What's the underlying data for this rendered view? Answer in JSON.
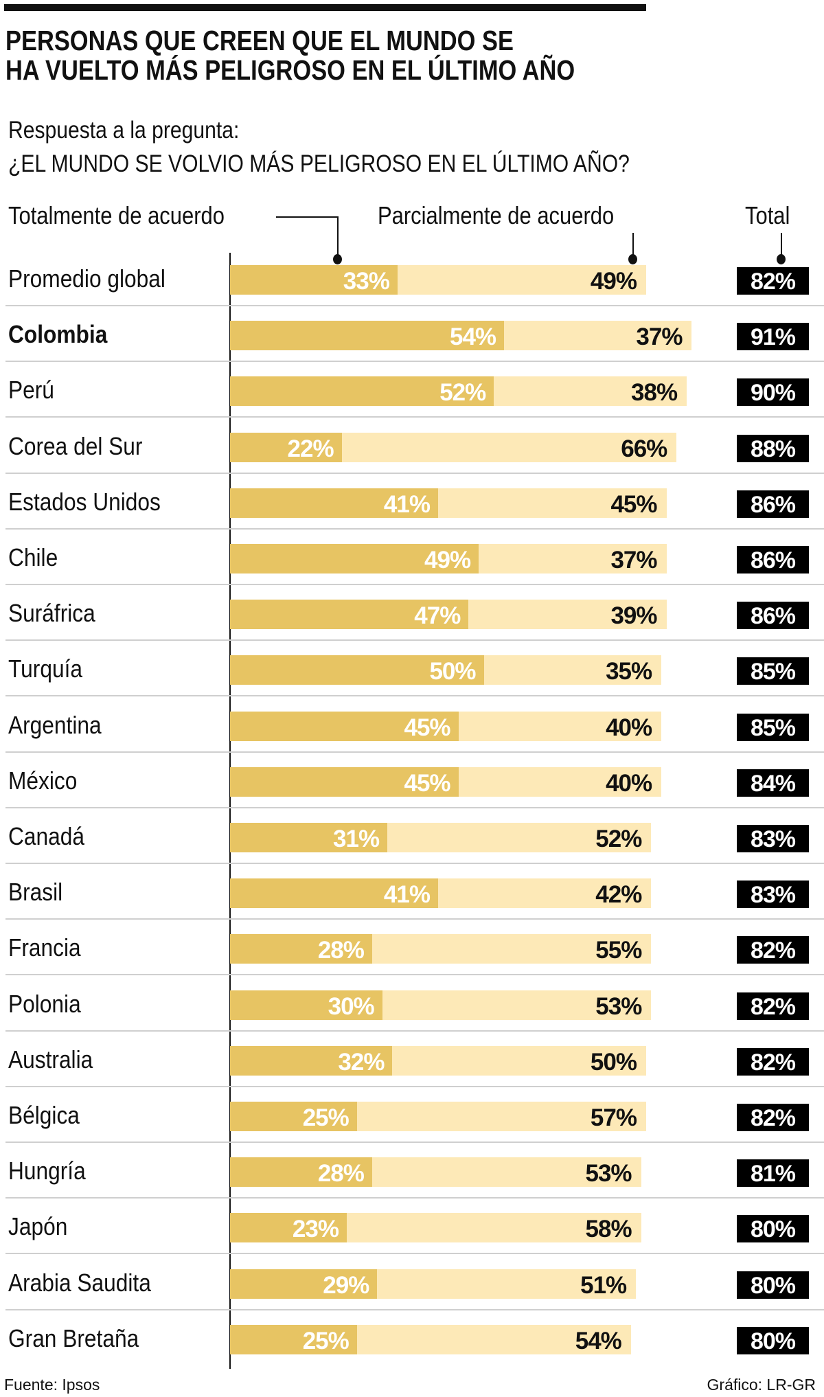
{
  "title_lines": [
    "PERSONAS QUE CREEN QUE EL MUNDO SE",
    "HA VUELTO MÁS PELIGROSO EN EL ÚLTIMO AÑO"
  ],
  "subtitle": "Respuesta a la pregunta:",
  "question": "¿EL MUNDO SE VOLVIO MÁS PELIGROSO EN EL ÚLTIMO AÑO?",
  "footer": {
    "source": "Fuente: Ipsos",
    "credit": "Gráfico: LR-GR"
  },
  "chart_data": {
    "type": "bar",
    "orientation": "horizontal",
    "stacked": true,
    "unit": "%",
    "highlight": "Colombia",
    "colors": {
      "Totalmente de acuerdo": "#e7c463",
      "Parcialmente de acuerdo": "#fde9b7",
      "Total": "#000000"
    },
    "legend": [
      "Totalmente de acuerdo",
      "Parcialmente de acuerdo",
      "Total"
    ],
    "categories": [
      "Promedio global",
      "Colombia",
      "Perú",
      "Corea del Sur",
      "Estados Unidos",
      "Chile",
      "Suráfrica",
      "Turquía",
      "Argentina",
      "México",
      "Canadá",
      "Brasil",
      "Francia",
      "Polonia",
      "Australia",
      "Bélgica",
      "Hungría",
      "Japón",
      "Arabia Saudita",
      "Gran Bretaña"
    ],
    "series": [
      {
        "name": "Totalmente de acuerdo",
        "values": [
          33,
          54,
          52,
          22,
          41,
          49,
          47,
          50,
          45,
          45,
          31,
          41,
          28,
          30,
          32,
          25,
          28,
          23,
          29,
          25
        ]
      },
      {
        "name": "Parcialmente de acuerdo",
        "values": [
          49,
          37,
          38,
          66,
          45,
          37,
          39,
          35,
          40,
          40,
          52,
          42,
          55,
          53,
          50,
          57,
          53,
          58,
          51,
          54
        ]
      },
      {
        "name": "Total",
        "values": [
          82,
          91,
          90,
          88,
          86,
          86,
          86,
          85,
          85,
          84,
          83,
          83,
          82,
          82,
          82,
          82,
          81,
          80,
          80,
          80
        ]
      }
    ]
  }
}
